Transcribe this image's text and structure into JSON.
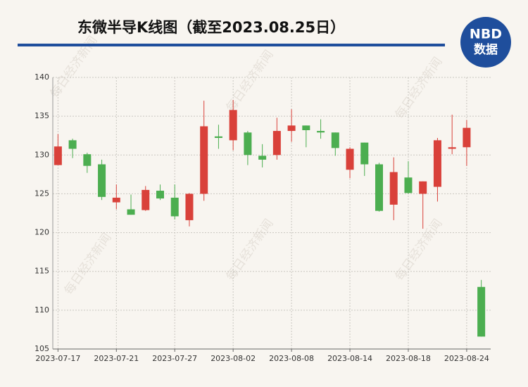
{
  "chart_data": {
    "type": "candlestick",
    "title": "东微半导K线图（截至2023.08.25日）",
    "logo": {
      "top": "NBD",
      "bottom": "数据"
    },
    "watermark": "每日经济新闻",
    "categories": [
      "2023-07-17",
      null,
      null,
      null,
      "2023-07-21",
      null,
      null,
      null,
      "2023-07-27",
      null,
      null,
      null,
      "2023-08-02",
      null,
      null,
      null,
      "2023-08-08",
      null,
      null,
      null,
      "2023-08-14",
      null,
      null,
      null,
      "2023-08-18",
      null,
      null,
      null,
      "2023-08-24",
      null
    ],
    "open": [
      128.7,
      131.9,
      130.1,
      128.8,
      123.9,
      123.0,
      122.9,
      125.4,
      124.5,
      121.6,
      125.0,
      132.4,
      131.9,
      132.9,
      129.9,
      130.0,
      133.1,
      133.8,
      133.1,
      132.9,
      128.1,
      131.6,
      128.8,
      123.6,
      127.1,
      125.0,
      125.9,
      130.8,
      131.0,
      113.0
    ],
    "close": [
      131.1,
      130.8,
      128.6,
      124.6,
      124.5,
      122.3,
      125.5,
      124.4,
      122.1,
      125.0,
      133.7,
      132.2,
      135.8,
      130.0,
      129.4,
      133.1,
      133.8,
      133.2,
      132.9,
      130.9,
      130.8,
      128.8,
      122.8,
      127.8,
      125.1,
      126.6,
      131.9,
      131.0,
      133.5,
      106.6
    ],
    "high": [
      132.7,
      132.1,
      130.3,
      129.4,
      126.2,
      124.9,
      126.0,
      126.2,
      126.2,
      125.1,
      137.0,
      133.9,
      137.1,
      133.1,
      131.4,
      134.8,
      135.9,
      133.8,
      134.6,
      132.9,
      131.0,
      131.6,
      129.0,
      129.7,
      129.2,
      126.6,
      132.2,
      135.2,
      134.5,
      113.9
    ],
    "low": [
      128.7,
      129.6,
      127.7,
      124.2,
      123.0,
      122.3,
      122.8,
      124.2,
      121.7,
      120.8,
      124.1,
      130.8,
      130.6,
      128.7,
      128.4,
      129.4,
      131.7,
      131.0,
      132.1,
      129.9,
      127.0,
      127.3,
      122.7,
      121.6,
      125.0,
      120.5,
      124.0,
      130.1,
      128.6,
      106.6
    ],
    "up_color": "#d9413a",
    "down_color": "#4cae50",
    "ylim": [
      105,
      140
    ],
    "yticks": [
      105,
      110,
      115,
      120,
      125,
      130,
      135,
      140
    ],
    "grid": true
  }
}
